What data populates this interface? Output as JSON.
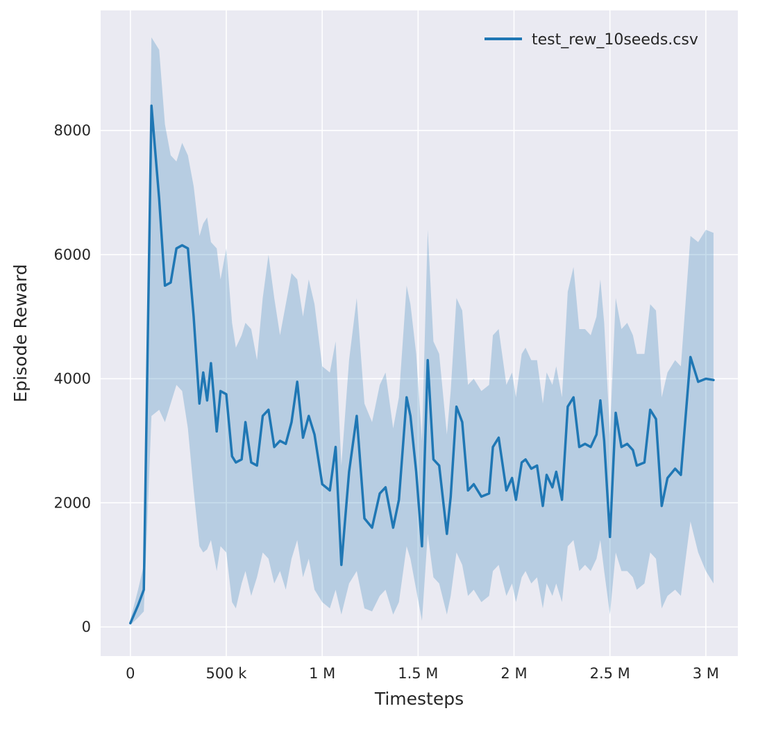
{
  "figure": {
    "background": "#ffffff",
    "axes_background": "#eaeaf2",
    "grid_color": "#ffffff",
    "text_color": "#262626"
  },
  "legend": {
    "label": "test_rew_10seeds.csv"
  },
  "axes": {
    "xlabel": "Timesteps",
    "ylabel": "Episode Reward"
  },
  "chart_data": {
    "type": "line",
    "title": "",
    "xlabel": "Timesteps",
    "ylabel": "Episode Reward",
    "legend": [
      "test_rew_10seeds.csv"
    ],
    "legend_position": "upper right",
    "grid": true,
    "line_color": "#1f77b4",
    "band_color": "#1f77b4",
    "band_opacity": 0.25,
    "line_width": 3.5,
    "xlim": [
      -155000,
      3167000
    ],
    "ylim": [
      -470,
      9935
    ],
    "x_ticks": {
      "values": [
        0,
        500000,
        1000000,
        1500000,
        2000000,
        2500000,
        3000000
      ],
      "labels": [
        "0",
        "500 k",
        "1 M",
        "1.5 M",
        "2 M",
        "2.5 M",
        "3 M"
      ]
    },
    "y_ticks": {
      "values": [
        0,
        2000,
        4000,
        6000,
        8000
      ],
      "labels": [
        "0",
        "2000",
        "4000",
        "6000",
        "8000"
      ]
    },
    "x": [
      0,
      40000,
      70000,
      110000,
      150000,
      180000,
      210000,
      240000,
      270000,
      300000,
      330000,
      360000,
      380000,
      400000,
      420000,
      450000,
      470000,
      500000,
      530000,
      550000,
      580000,
      600000,
      630000,
      660000,
      690000,
      720000,
      750000,
      780000,
      810000,
      840000,
      870000,
      900000,
      930000,
      960000,
      1000000,
      1040000,
      1070000,
      1100000,
      1140000,
      1180000,
      1220000,
      1260000,
      1300000,
      1330000,
      1370000,
      1400000,
      1440000,
      1460000,
      1490000,
      1520000,
      1550000,
      1580000,
      1610000,
      1650000,
      1670000,
      1700000,
      1730000,
      1760000,
      1790000,
      1830000,
      1870000,
      1890000,
      1920000,
      1960000,
      1990000,
      2010000,
      2040000,
      2060000,
      2090000,
      2120000,
      2150000,
      2170000,
      2200000,
      2220000,
      2250000,
      2280000,
      2310000,
      2340000,
      2370000,
      2400000,
      2430000,
      2450000,
      2470000,
      2500000,
      2530000,
      2560000,
      2590000,
      2620000,
      2640000,
      2680000,
      2710000,
      2740000,
      2770000,
      2800000,
      2840000,
      2870000,
      2920000,
      2960000,
      3000000,
      3040000
    ],
    "series": [
      {
        "name": "test_rew_10seeds.csv",
        "mean": [
          60,
          350,
          600,
          8400,
          6900,
          5500,
          5550,
          6100,
          6150,
          6100,
          5000,
          3600,
          4100,
          3650,
          4250,
          3150,
          3800,
          3750,
          2750,
          2650,
          2700,
          3300,
          2650,
          2600,
          3400,
          3500,
          2900,
          3000,
          2950,
          3300,
          3950,
          3050,
          3400,
          3100,
          2300,
          2200,
          2900,
          1000,
          2500,
          3400,
          1750,
          1600,
          2150,
          2250,
          1600,
          2050,
          3700,
          3400,
          2500,
          1300,
          4300,
          2700,
          2600,
          1500,
          2100,
          3550,
          3300,
          2200,
          2300,
          2100,
          2150,
          2900,
          3050,
          2200,
          2400,
          2050,
          2650,
          2700,
          2550,
          2600,
          1950,
          2450,
          2250,
          2500,
          2050,
          3550,
          3700,
          2900,
          2950,
          2900,
          3100,
          3650,
          3000,
          1450,
          3450,
          2900,
          2950,
          2850,
          2600,
          2650,
          3500,
          3350,
          1950,
          2400,
          2550,
          2450,
          4350,
          3950,
          4000,
          3980
        ],
        "lower": [
          30,
          150,
          250,
          3400,
          3500,
          3300,
          3600,
          3900,
          3800,
          3200,
          2200,
          1300,
          1200,
          1250,
          1400,
          900,
          1300,
          1200,
          400,
          300,
          700,
          900,
          500,
          800,
          1200,
          1100,
          700,
          900,
          600,
          1100,
          1400,
          800,
          1100,
          600,
          400,
          300,
          600,
          200,
          700,
          900,
          300,
          250,
          500,
          600,
          200,
          400,
          1300,
          1100,
          600,
          100,
          1500,
          800,
          700,
          200,
          500,
          1200,
          1000,
          500,
          600,
          400,
          500,
          900,
          1000,
          500,
          700,
          400,
          800,
          900,
          700,
          800,
          300,
          700,
          500,
          700,
          400,
          1300,
          1400,
          900,
          1000,
          900,
          1100,
          1400,
          900,
          200,
          1200,
          900,
          900,
          800,
          600,
          700,
          1200,
          1100,
          300,
          500,
          600,
          500,
          1700,
          1200,
          900,
          700
        ],
        "upper": [
          120,
          600,
          1000,
          9500,
          9300,
          8100,
          7600,
          7500,
          7800,
          7600,
          7100,
          6300,
          6500,
          6600,
          6200,
          6100,
          5600,
          6100,
          4900,
          4500,
          4700,
          4900,
          4800,
          4300,
          5300,
          6000,
          5300,
          4700,
          5200,
          5700,
          5600,
          5000,
          5600,
          5200,
          4200,
          4100,
          4600,
          2600,
          4300,
          5300,
          3600,
          3300,
          3900,
          4100,
          3200,
          3700,
          5500,
          5200,
          4400,
          3000,
          6400,
          4600,
          4400,
          3100,
          3800,
          5300,
          5100,
          3900,
          4000,
          3800,
          3900,
          4700,
          4800,
          3900,
          4100,
          3700,
          4400,
          4500,
          4300,
          4300,
          3600,
          4100,
          3900,
          4200,
          3700,
          5400,
          5800,
          4800,
          4800,
          4700,
          5000,
          5600,
          4900,
          3100,
          5300,
          4800,
          4900,
          4700,
          4400,
          4400,
          5200,
          5100,
          3700,
          4100,
          4300,
          4200,
          6300,
          6200,
          6400,
          6350
        ]
      }
    ]
  }
}
